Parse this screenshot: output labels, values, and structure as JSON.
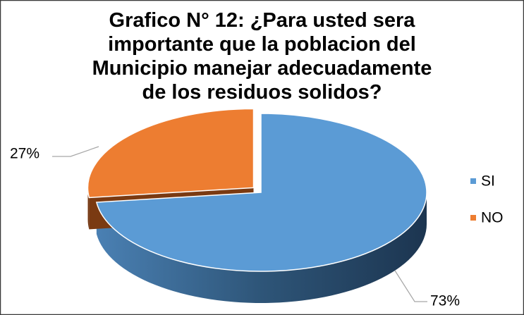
{
  "chart_data": {
    "type": "pie",
    "title": "Grafico N° 12: ¿Para usted sera importante que la poblacion del Municipio manejar adecuadamente de los residuos solidos?",
    "categories": [
      "SI",
      "NO"
    ],
    "values": [
      73,
      27
    ],
    "value_labels": [
      "73%",
      "27%"
    ],
    "colors": [
      "#5b9bd5",
      "#ed7d31"
    ],
    "legend": "right"
  }
}
